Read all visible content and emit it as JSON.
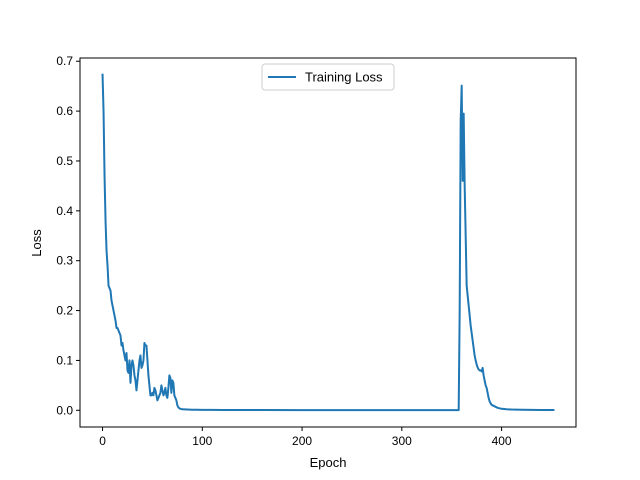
{
  "chart_data": {
    "type": "line",
    "title": "",
    "xlabel": "Epoch",
    "ylabel": "Loss",
    "xlim": [
      -22.6,
      474.6
    ],
    "ylim": [
      -0.0335,
      0.7065
    ],
    "xticks": [
      0,
      100,
      200,
      300,
      400
    ],
    "yticks": [
      0.0,
      0.1,
      0.2,
      0.3,
      0.4,
      0.5,
      0.6,
      0.7
    ],
    "ytick_labels": [
      "0.0",
      "0.1",
      "0.2",
      "0.3",
      "0.4",
      "0.5",
      "0.6",
      "0.7"
    ],
    "grid": false,
    "legend": "upper center",
    "series": [
      {
        "name": "Training Loss",
        "color": "#1f77b4",
        "x": [
          0,
          1,
          2,
          3,
          4,
          5,
          6,
          7,
          8,
          9,
          10,
          11,
          12,
          13,
          14,
          15,
          16,
          17,
          18,
          19,
          20,
          21,
          22,
          23,
          24,
          25,
          26,
          27,
          28,
          29,
          30,
          31,
          32,
          33,
          34,
          35,
          36,
          37,
          38,
          39,
          40,
          41,
          42,
          43,
          44,
          45,
          46,
          47,
          48,
          49,
          50,
          51,
          52,
          53,
          54,
          55,
          56,
          57,
          58,
          59,
          60,
          61,
          62,
          63,
          64,
          65,
          66,
          67,
          68,
          69,
          70,
          71,
          72,
          73,
          74,
          75,
          76,
          77,
          78,
          80,
          85,
          90,
          95,
          100,
          110,
          120,
          140,
          160,
          200,
          250,
          300,
          357,
          358,
          359,
          360,
          361,
          362,
          363,
          364,
          365,
          366,
          367,
          368,
          369,
          370,
          371,
          372,
          373,
          374,
          375,
          376,
          377,
          378,
          379,
          380,
          381,
          382,
          383,
          384,
          385,
          386,
          387,
          388,
          389,
          390,
          392,
          394,
          396,
          398,
          400,
          405,
          410,
          420,
          430,
          440,
          452
        ],
        "y": [
          0.673,
          0.6,
          0.47,
          0.38,
          0.32,
          0.29,
          0.25,
          0.245,
          0.24,
          0.22,
          0.21,
          0.2,
          0.19,
          0.18,
          0.165,
          0.165,
          0.16,
          0.155,
          0.15,
          0.13,
          0.135,
          0.12,
          0.11,
          0.1,
          0.115,
          0.08,
          0.075,
          0.1,
          0.055,
          0.09,
          0.1,
          0.09,
          0.07,
          0.06,
          0.04,
          0.06,
          0.08,
          0.1,
          0.11,
          0.085,
          0.09,
          0.1,
          0.135,
          0.13,
          0.13,
          0.1,
          0.07,
          0.05,
          0.03,
          0.03,
          0.035,
          0.03,
          0.045,
          0.04,
          0.03,
          0.02,
          0.025,
          0.03,
          0.035,
          0.05,
          0.04,
          0.03,
          0.035,
          0.045,
          0.03,
          0.025,
          0.045,
          0.07,
          0.065,
          0.035,
          0.06,
          0.055,
          0.03,
          0.025,
          0.02,
          0.01,
          0.006,
          0.004,
          0.003,
          0.002,
          0.0015,
          0.0012,
          0.001,
          0.0009,
          0.0008,
          0.0007,
          0.0006,
          0.0005,
          0.0004,
          0.0004,
          0.0004,
          0.0004,
          0.2,
          0.58,
          0.651,
          0.46,
          0.595,
          0.45,
          0.35,
          0.25,
          0.23,
          0.21,
          0.19,
          0.17,
          0.155,
          0.14,
          0.125,
          0.11,
          0.1,
          0.092,
          0.086,
          0.082,
          0.08,
          0.08,
          0.078,
          0.085,
          0.07,
          0.06,
          0.05,
          0.045,
          0.035,
          0.025,
          0.018,
          0.014,
          0.011,
          0.009,
          0.007,
          0.005,
          0.004,
          0.003,
          0.002,
          0.0015,
          0.001,
          0.0008,
          0.0006,
          0.0005
        ]
      }
    ]
  }
}
